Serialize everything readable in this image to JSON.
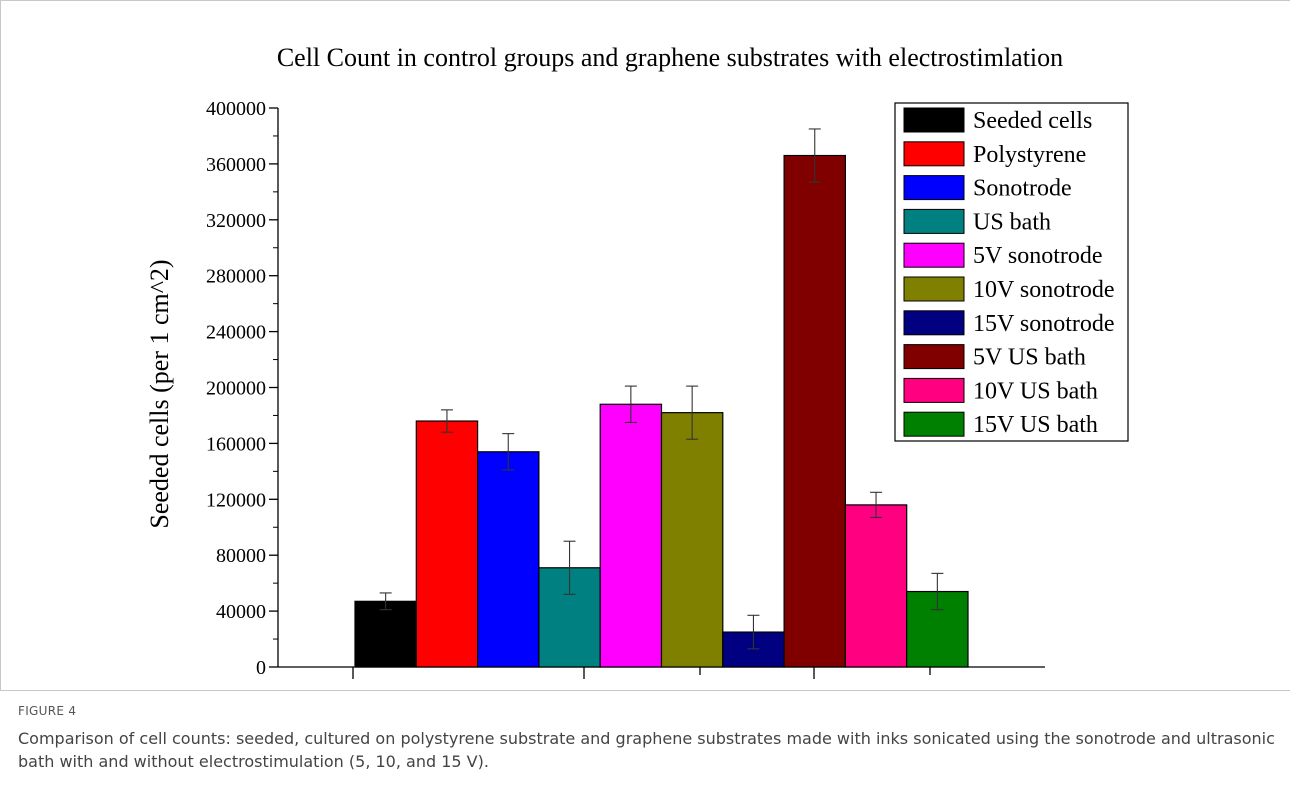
{
  "chart_data": {
    "type": "bar",
    "title": "Cell Count in control groups and graphene substrates with electrostimlation",
    "y_label": "Seeded cells (per 1 cm^2)",
    "categories": [
      "Seeded cells",
      "Polystyrene",
      "Sonotrode",
      "US bath",
      "5V sonotrode",
      "10V sonotrode",
      "15V sonotrode",
      "5V US bath",
      "10V US bath",
      "15V US bath"
    ],
    "colors": [
      "#000000",
      "#ff0000",
      "#0000ff",
      "#008080",
      "#ff00ff",
      "#808000",
      "#000080",
      "#800000",
      "#ff0080",
      "#008000"
    ],
    "values": [
      47000,
      176000,
      154000,
      71000,
      188000,
      182000,
      25000,
      366000,
      116000,
      54000
    ],
    "errors": [
      6000,
      8000,
      13000,
      19000,
      13000,
      19000,
      12000,
      19000,
      9000,
      13000
    ],
    "ylim": [
      0,
      400000
    ],
    "yticks": [
      0,
      40000,
      80000,
      120000,
      160000,
      200000,
      240000,
      280000,
      320000,
      360000,
      400000
    ],
    "legend": "upper right"
  },
  "caption": {
    "label": "FIGURE 4",
    "text": "Comparison of cell counts: seeded, cultured on polystyrene substrate and graphene substrates made with inks sonicated using the sonotrode and ultrasonic bath with and without electrostimulation (5, 10, and 15 V)."
  }
}
